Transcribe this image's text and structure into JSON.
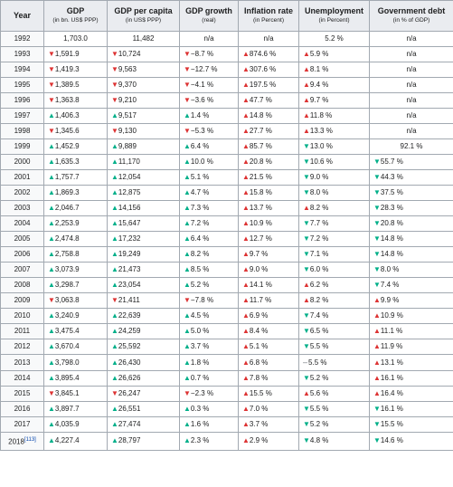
{
  "headers": {
    "year": "Year",
    "gdp": "GDP",
    "gdp_unit": "(in bn. US$ PPP)",
    "gdppc": "GDP per capita",
    "gdppc_unit": "(in US$ PPP)",
    "growth": "GDP growth",
    "growth_unit": "(real)",
    "inflation": "Inflation rate",
    "inflation_unit": "(in Percent)",
    "unemp": "Unemployment",
    "unemp_unit": "(in Percent)",
    "debt": "Government debt",
    "debt_unit": "(in % of GDP)"
  },
  "footnote": "[113]",
  "rows": [
    {
      "year": "1992",
      "gdp": "1,703.0",
      "gdp_t": "",
      "gdppc": "11,482",
      "gdppc_t": "",
      "growth": "n/a",
      "growth_t": "",
      "inf": "n/a",
      "inf_t": "",
      "unemp": "5.2 %",
      "unemp_t": "",
      "debt": "n/a",
      "debt_t": ""
    },
    {
      "year": "1993",
      "gdp": "1,591.9",
      "gdp_t": "down",
      "gdppc": "10,724",
      "gdppc_t": "down",
      "growth": "−8.7 %",
      "growth_t": "down",
      "inf": "874.6 %",
      "inf_t": "upr",
      "unemp": "5.9 %",
      "unemp_t": "upr",
      "debt": "n/a",
      "debt_t": ""
    },
    {
      "year": "1994",
      "gdp": "1,419.3",
      "gdp_t": "down",
      "gdppc": "9,563",
      "gdppc_t": "down",
      "growth": "−12.7 %",
      "growth_t": "down",
      "inf": "307.6 %",
      "inf_t": "upr",
      "unemp": "8.1 %",
      "unemp_t": "upr",
      "debt": "n/a",
      "debt_t": ""
    },
    {
      "year": "1995",
      "gdp": "1,389.5",
      "gdp_t": "down",
      "gdppc": "9,370",
      "gdppc_t": "down",
      "growth": "−4.1 %",
      "growth_t": "down",
      "inf": "197.5 %",
      "inf_t": "upr",
      "unemp": "9.4 %",
      "unemp_t": "upr",
      "debt": "n/a",
      "debt_t": ""
    },
    {
      "year": "1996",
      "gdp": "1,363.8",
      "gdp_t": "down",
      "gdppc": "9,210",
      "gdppc_t": "down",
      "growth": "−3.6 %",
      "growth_t": "down",
      "inf": "47.7 %",
      "inf_t": "upr",
      "unemp": "9.7 %",
      "unemp_t": "upr",
      "debt": "n/a",
      "debt_t": ""
    },
    {
      "year": "1997",
      "gdp": "1,406.3",
      "gdp_t": "up",
      "gdppc": "9,517",
      "gdppc_t": "up",
      "growth": "1.4 %",
      "growth_t": "up",
      "inf": "14.8 %",
      "inf_t": "upr",
      "unemp": "11.8 %",
      "unemp_t": "upr",
      "debt": "n/a",
      "debt_t": ""
    },
    {
      "year": "1998",
      "gdp": "1,345.6",
      "gdp_t": "down",
      "gdppc": "9,130",
      "gdppc_t": "down",
      "growth": "−5.3 %",
      "growth_t": "down",
      "inf": "27.7 %",
      "inf_t": "upr",
      "unemp": "13.3 %",
      "unemp_t": "upr",
      "debt": "n/a",
      "debt_t": ""
    },
    {
      "year": "1999",
      "gdp": "1,452.9",
      "gdp_t": "up",
      "gdppc": "9,889",
      "gdppc_t": "up",
      "growth": "6.4 %",
      "growth_t": "up",
      "inf": "85.7 %",
      "inf_t": "upr",
      "unemp": "13.0 %",
      "unemp_t": "downg",
      "debt": "92.1 %",
      "debt_t": ""
    },
    {
      "year": "2000",
      "gdp": "1,635.3",
      "gdp_t": "up",
      "gdppc": "11,170",
      "gdppc_t": "up",
      "growth": "10.0 %",
      "growth_t": "up",
      "inf": "20.8 %",
      "inf_t": "upr",
      "unemp": "10.6 %",
      "unemp_t": "downg",
      "debt": "55.7 %",
      "debt_t": "downg"
    },
    {
      "year": "2001",
      "gdp": "1,757.7",
      "gdp_t": "up",
      "gdppc": "12,054",
      "gdppc_t": "up",
      "growth": "5.1 %",
      "growth_t": "up",
      "inf": "21.5 %",
      "inf_t": "upr",
      "unemp": "9.0 %",
      "unemp_t": "downg",
      "debt": "44.3 %",
      "debt_t": "downg"
    },
    {
      "year": "2002",
      "gdp": "1,869.3",
      "gdp_t": "up",
      "gdppc": "12,875",
      "gdppc_t": "up",
      "growth": "4.7 %",
      "growth_t": "up",
      "inf": "15.8 %",
      "inf_t": "upr",
      "unemp": "8.0 %",
      "unemp_t": "downg",
      "debt": "37.5 %",
      "debt_t": "downg"
    },
    {
      "year": "2003",
      "gdp": "2,046.7",
      "gdp_t": "up",
      "gdppc": "14,156",
      "gdppc_t": "up",
      "growth": "7.3 %",
      "growth_t": "up",
      "inf": "13.7 %",
      "inf_t": "upr",
      "unemp": "8.2 %",
      "unemp_t": "upr",
      "debt": "28.3 %",
      "debt_t": "downg"
    },
    {
      "year": "2004",
      "gdp": "2,253.9",
      "gdp_t": "up",
      "gdppc": "15,647",
      "gdppc_t": "up",
      "growth": "7.2 %",
      "growth_t": "up",
      "inf": "10.9 %",
      "inf_t": "upr",
      "unemp": "7.7 %",
      "unemp_t": "downg",
      "debt": "20.8 %",
      "debt_t": "downg"
    },
    {
      "year": "2005",
      "gdp": "2,474.8",
      "gdp_t": "up",
      "gdppc": "17,232",
      "gdppc_t": "up",
      "growth": "6.4 %",
      "growth_t": "up",
      "inf": "12.7 %",
      "inf_t": "upr",
      "unemp": "7.2 %",
      "unemp_t": "downg",
      "debt": "14.8 %",
      "debt_t": "downg"
    },
    {
      "year": "2006",
      "gdp": "2,758.8",
      "gdp_t": "up",
      "gdppc": "19,249",
      "gdppc_t": "up",
      "growth": "8.2 %",
      "growth_t": "up",
      "inf": "9.7 %",
      "inf_t": "upr",
      "unemp": "7.1 %",
      "unemp_t": "downg",
      "debt": "14.8 %",
      "debt_t": "downg"
    },
    {
      "year": "2007",
      "gdp": "3,073.9",
      "gdp_t": "up",
      "gdppc": "21,473",
      "gdppc_t": "up",
      "growth": "8.5 %",
      "growth_t": "up",
      "inf": "9.0 %",
      "inf_t": "upr",
      "unemp": "6.0 %",
      "unemp_t": "downg",
      "debt": "8.0 %",
      "debt_t": "downg"
    },
    {
      "year": "2008",
      "gdp": "3,298.7",
      "gdp_t": "up",
      "gdppc": "23,054",
      "gdppc_t": "up",
      "growth": "5.2 %",
      "growth_t": "up",
      "inf": "14.1 %",
      "inf_t": "upr",
      "unemp": "6.2 %",
      "unemp_t": "upr",
      "debt": "7.4 %",
      "debt_t": "downg"
    },
    {
      "year": "2009",
      "gdp": "3,063.8",
      "gdp_t": "down",
      "gdppc": "21,411",
      "gdppc_t": "down",
      "growth": "−7.8 %",
      "growth_t": "down",
      "inf": "11.7 %",
      "inf_t": "upr",
      "unemp": "8.2 %",
      "unemp_t": "upr",
      "debt": "9.9 %",
      "debt_t": "upr"
    },
    {
      "year": "2010",
      "gdp": "3,240.9",
      "gdp_t": "up",
      "gdppc": "22,639",
      "gdppc_t": "up",
      "growth": "4.5 %",
      "growth_t": "up",
      "inf": "6.9 %",
      "inf_t": "upr",
      "unemp": "7.4 %",
      "unemp_t": "downg",
      "debt": "10.9 %",
      "debt_t": "upr"
    },
    {
      "year": "2011",
      "gdp": "3,475.4",
      "gdp_t": "up",
      "gdppc": "24,259",
      "gdppc_t": "up",
      "growth": "5.0 %",
      "growth_t": "up",
      "inf": "8.4 %",
      "inf_t": "upr",
      "unemp": "6.5 %",
      "unemp_t": "downg",
      "debt": "11.1 %",
      "debt_t": "upr"
    },
    {
      "year": "2012",
      "gdp": "3,670.4",
      "gdp_t": "up",
      "gdppc": "25,592",
      "gdppc_t": "up",
      "growth": "3.7 %",
      "growth_t": "up",
      "inf": "5.1 %",
      "inf_t": "upr",
      "unemp": "5.5 %",
      "unemp_t": "downg",
      "debt": "11.9 %",
      "debt_t": "upr"
    },
    {
      "year": "2013",
      "gdp": "3,798.0",
      "gdp_t": "up",
      "gdppc": "26,430",
      "gdppc_t": "up",
      "growth": "1.8 %",
      "growth_t": "up",
      "inf": "6.8 %",
      "inf_t": "upr",
      "unemp": "5.5 %",
      "unemp_t": "flat",
      "debt": "13.1 %",
      "debt_t": "upr"
    },
    {
      "year": "2014",
      "gdp": "3,895.4",
      "gdp_t": "up",
      "gdppc": "26,626",
      "gdppc_t": "up",
      "growth": "0.7 %",
      "growth_t": "up",
      "inf": "7.8 %",
      "inf_t": "upr",
      "unemp": "5.2 %",
      "unemp_t": "downg",
      "debt": "16.1 %",
      "debt_t": "upr"
    },
    {
      "year": "2015",
      "gdp": "3,845.1",
      "gdp_t": "down",
      "gdppc": "26,247",
      "gdppc_t": "down",
      "growth": "−2.3 %",
      "growth_t": "down",
      "inf": "15.5 %",
      "inf_t": "upr",
      "unemp": "5.6 %",
      "unemp_t": "upr",
      "debt": "16.4 %",
      "debt_t": "upr"
    },
    {
      "year": "2016",
      "gdp": "3,897.7",
      "gdp_t": "up",
      "gdppc": "26,551",
      "gdppc_t": "up",
      "growth": "0.3 %",
      "growth_t": "up",
      "inf": "7.0 %",
      "inf_t": "upr",
      "unemp": "5.5 %",
      "unemp_t": "downg",
      "debt": "16.1 %",
      "debt_t": "downg"
    },
    {
      "year": "2017",
      "gdp": "4,035.9",
      "gdp_t": "up",
      "gdppc": "27,474",
      "gdppc_t": "up",
      "growth": "1.6 %",
      "growth_t": "up",
      "inf": "3.7 %",
      "inf_t": "upr",
      "unemp": "5.2 %",
      "unemp_t": "downg",
      "debt": "15.5 %",
      "debt_t": "downg"
    },
    {
      "year": "2018",
      "gdp": "4,227.4",
      "gdp_t": "up",
      "gdppc": "28,797",
      "gdppc_t": "up",
      "growth": "2.3 %",
      "growth_t": "up",
      "inf": "2.9 %",
      "inf_t": "upr",
      "unemp": "4.8 %",
      "unemp_t": "downg",
      "debt": "14.6 %",
      "debt_t": "downg"
    }
  ]
}
